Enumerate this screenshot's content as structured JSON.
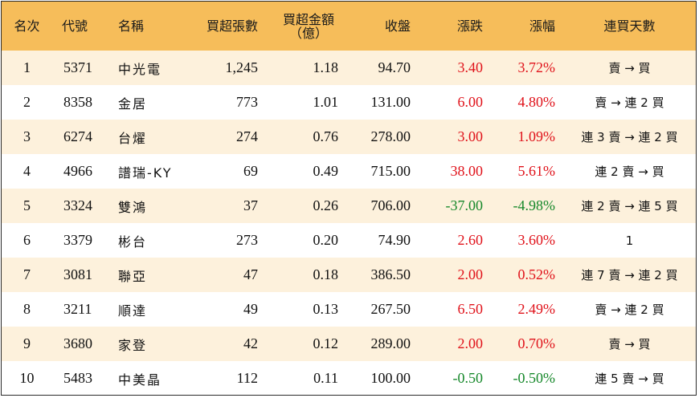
{
  "colors": {
    "header_bg": "#f6bd5a",
    "stripe_bg": "#fdf1dc",
    "up": "#e0121a",
    "down": "#16882a"
  },
  "headers": {
    "rank": "名次",
    "code": "代號",
    "name": "名稱",
    "net_lots": "買超張數",
    "net_amount_line1": "買超金額",
    "net_amount_line2": "（億）",
    "close": "收盤",
    "change": "漲跌",
    "pct": "漲幅",
    "streak": "連買天數"
  },
  "rows": [
    {
      "rank": "1",
      "code": "5371",
      "name": "中光電",
      "net_lots": "1,245",
      "net_amount": "1.18",
      "close": "94.70",
      "change": "3.40",
      "pct": "3.72%",
      "dir": "up",
      "streak": "賣 → 買"
    },
    {
      "rank": "2",
      "code": "8358",
      "name": "金居",
      "net_lots": "773",
      "net_amount": "1.01",
      "close": "131.00",
      "change": "6.00",
      "pct": "4.80%",
      "dir": "up",
      "streak": "賣 → 連 2 買"
    },
    {
      "rank": "3",
      "code": "6274",
      "name": "台燿",
      "net_lots": "274",
      "net_amount": "0.76",
      "close": "278.00",
      "change": "3.00",
      "pct": "1.09%",
      "dir": "up",
      "streak": "連 3 賣 → 連 2 買"
    },
    {
      "rank": "4",
      "code": "4966",
      "name": "譜瑞-KY",
      "net_lots": "69",
      "net_amount": "0.49",
      "close": "715.00",
      "change": "38.00",
      "pct": "5.61%",
      "dir": "up",
      "streak": "連 2 賣 → 買"
    },
    {
      "rank": "5",
      "code": "3324",
      "name": "雙鴻",
      "net_lots": "37",
      "net_amount": "0.26",
      "close": "706.00",
      "change": "-37.00",
      "pct": "-4.98%",
      "dir": "down",
      "streak": "連 2 賣 → 連 5 買"
    },
    {
      "rank": "6",
      "code": "3379",
      "name": "彬台",
      "net_lots": "273",
      "net_amount": "0.20",
      "close": "74.90",
      "change": "2.60",
      "pct": "3.60%",
      "dir": "up",
      "streak": "1"
    },
    {
      "rank": "7",
      "code": "3081",
      "name": "聯亞",
      "net_lots": "47",
      "net_amount": "0.18",
      "close": "386.50",
      "change": "2.00",
      "pct": "0.52%",
      "dir": "up",
      "streak": "連 7 賣 → 連 2 買"
    },
    {
      "rank": "8",
      "code": "3211",
      "name": "順達",
      "net_lots": "49",
      "net_amount": "0.13",
      "close": "267.50",
      "change": "6.50",
      "pct": "2.49%",
      "dir": "up",
      "streak": "賣 → 連 2 買"
    },
    {
      "rank": "9",
      "code": "3680",
      "name": "家登",
      "net_lots": "42",
      "net_amount": "0.12",
      "close": "289.00",
      "change": "2.00",
      "pct": "0.70%",
      "dir": "up",
      "streak": "賣 → 買"
    },
    {
      "rank": "10",
      "code": "5483",
      "name": "中美晶",
      "net_lots": "112",
      "net_amount": "0.11",
      "close": "100.00",
      "change": "-0.50",
      "pct": "-0.50%",
      "dir": "down",
      "streak": "連 5 賣 → 買"
    }
  ]
}
